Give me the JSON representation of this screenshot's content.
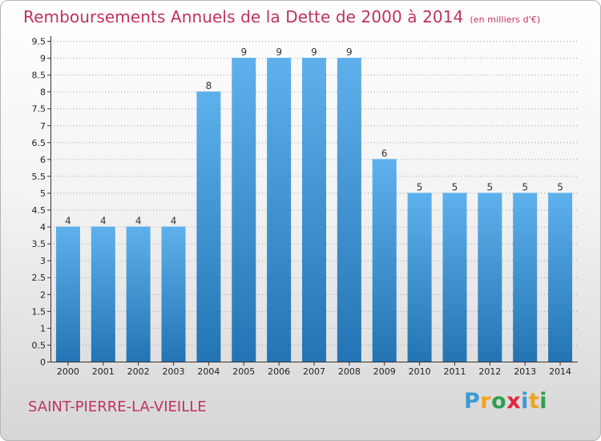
{
  "title": "Remboursements Annuels de la Dette de 2000 à 2014",
  "subtitle": "(en milliers d'€)",
  "commune": "SAINT-PIERRE-LA-VIEILLE",
  "logo": {
    "text": "Proxiti",
    "letter_colors": [
      "#3a9bd5",
      "#f2a31c",
      "#2e9e4f",
      "#e2263f",
      "#3a9bd5",
      "#f2a31c",
      "#2e9e4f"
    ]
  },
  "colors": {
    "bar_light": "#5eb1ec",
    "bar_dark": "#2374b4",
    "axis": "#333333",
    "grid": "#9e9e9e",
    "title": "#c0325e"
  },
  "chart_data": {
    "type": "bar",
    "categories": [
      "2000",
      "2001",
      "2002",
      "2003",
      "2004",
      "2005",
      "2006",
      "2007",
      "2008",
      "2009",
      "2010",
      "2011",
      "2012",
      "2013",
      "2014"
    ],
    "values": [
      4,
      4,
      4,
      4,
      8,
      9,
      9,
      9,
      9,
      6,
      5,
      5,
      5,
      5,
      5
    ],
    "data_labels": [
      "4",
      "4",
      "4",
      "4",
      "8",
      "9",
      "9",
      "9",
      "9",
      "6",
      "5",
      "5",
      "5",
      "5",
      "5"
    ],
    "y_ticks": [
      0,
      0.5,
      1,
      1.5,
      2,
      2.5,
      3,
      3.5,
      4,
      4.5,
      5,
      5.5,
      6,
      6.5,
      7,
      7.5,
      8,
      8.5,
      9,
      9.5
    ],
    "y_tick_labels": [
      "0",
      "0.5",
      "1",
      "1.5",
      "2",
      "2.5",
      "3",
      "3.5",
      "4",
      "4.5",
      "5",
      "5.5",
      "6",
      "6.5",
      "7",
      "7.5",
      "8",
      "8.5",
      "9",
      "9.5"
    ],
    "ylim": [
      0,
      9.5
    ],
    "grid": true,
    "xlabel": "",
    "ylabel": ""
  }
}
